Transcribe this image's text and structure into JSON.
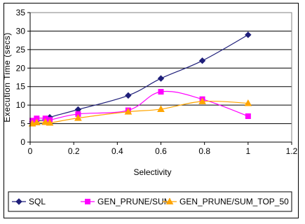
{
  "chart_data": {
    "type": "line",
    "xlabel": "Selectivity",
    "ylabel": "Execution Time (secs)",
    "xlim": [
      0,
      1.2
    ],
    "ylim": [
      0,
      35
    ],
    "x_ticks": [
      "0",
      "0.2",
      "0.4",
      "0.6",
      "0.8",
      "1",
      "1.2"
    ],
    "y_ticks": [
      "0",
      "5",
      "10",
      "15",
      "20",
      "25",
      "30",
      "35"
    ],
    "grid": "horizontal",
    "legend_position": "bottom",
    "series": [
      {
        "name": "SQL",
        "marker": "diamond",
        "color": "#1f1f7a",
        "points": [
          [
            0.01,
            5.5
          ],
          [
            0.03,
            5.8
          ],
          [
            0.07,
            6.0
          ],
          [
            0.09,
            6.7
          ],
          [
            0.22,
            8.8
          ],
          [
            0.45,
            12.6
          ],
          [
            0.6,
            17.2
          ],
          [
            0.79,
            22.0
          ],
          [
            1.0,
            29.0
          ]
        ]
      },
      {
        "name": "GEN_PRUNE/SUM",
        "marker": "square",
        "color": "#ff00ff",
        "points": [
          [
            0.01,
            5.8
          ],
          [
            0.03,
            6.4
          ],
          [
            0.07,
            6.4
          ],
          [
            0.09,
            6.0
          ],
          [
            0.22,
            7.6
          ],
          [
            0.45,
            8.6
          ],
          [
            0.6,
            13.6
          ],
          [
            0.79,
            11.6
          ],
          [
            1.0,
            7.0
          ]
        ]
      },
      {
        "name": "GEN_PRUNE/SUM_TOP_50",
        "marker": "triangle",
        "color": "#ffa500",
        "points": [
          [
            0.01,
            5.0
          ],
          [
            0.03,
            5.3
          ],
          [
            0.07,
            5.4
          ],
          [
            0.09,
            5.2
          ],
          [
            0.22,
            6.5
          ],
          [
            0.45,
            8.2
          ],
          [
            0.6,
            8.9
          ],
          [
            0.79,
            11.0
          ],
          [
            1.0,
            10.5
          ]
        ]
      }
    ]
  }
}
